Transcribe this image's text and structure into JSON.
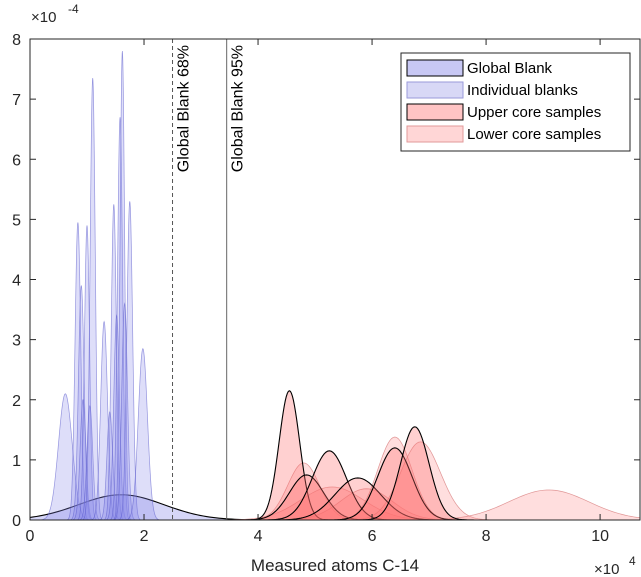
{
  "chart_data": {
    "type": "area",
    "xlabel": "Measured atoms C-14",
    "x_multiplier_label": "×10",
    "x_multiplier_exp": "4",
    "y_multiplier_label": "×10",
    "y_multiplier_exp": "-4",
    "xlim": [
      0,
      10.7
    ],
    "ylim": [
      0,
      8
    ],
    "x_ticks": [
      0,
      2,
      4,
      6,
      8,
      10
    ],
    "y_ticks": [
      0,
      1,
      2,
      3,
      4,
      5,
      6,
      7,
      8
    ],
    "legend_position": "top-right",
    "grid": false,
    "vlines": [
      {
        "label": "Global Blank 68%",
        "x": 2.5,
        "style": "dashed"
      },
      {
        "label": "Global Blank 95%",
        "x": 3.45,
        "style": "solid"
      }
    ],
    "legend": [
      {
        "label": "Global Blank",
        "fill": "#c8c8f4",
        "stroke": "#000000"
      },
      {
        "label": "Individual blanks",
        "fill": "#d8d8f6",
        "stroke": "#9a9ada"
      },
      {
        "label": "Upper core samples",
        "fill": "#ffc4c4",
        "stroke": "#000000"
      },
      {
        "label": "Lower core samples",
        "fill": "#ffd6d6",
        "stroke": "#e09a9a"
      }
    ],
    "series": [
      {
        "name": "Global Blank",
        "group": "global",
        "components": [
          {
            "mean": 1.6,
            "sd": 0.75,
            "peak": 0.42
          }
        ]
      },
      {
        "name": "Individual blanks",
        "group": "individual",
        "components": [
          {
            "mean": 0.62,
            "sd": 0.12,
            "peak": 2.1
          },
          {
            "mean": 0.84,
            "sd": 0.05,
            "peak": 4.95
          },
          {
            "mean": 0.9,
            "sd": 0.05,
            "peak": 3.9
          },
          {
            "mean": 0.93,
            "sd": 0.05,
            "peak": 2.0
          },
          {
            "mean": 1.0,
            "sd": 0.045,
            "peak": 4.9
          },
          {
            "mean": 1.05,
            "sd": 0.05,
            "peak": 1.9
          },
          {
            "mean": 1.1,
            "sd": 0.045,
            "peak": 7.35
          },
          {
            "mean": 1.3,
            "sd": 0.06,
            "peak": 3.3
          },
          {
            "mean": 1.4,
            "sd": 0.05,
            "peak": 1.8
          },
          {
            "mean": 1.47,
            "sd": 0.045,
            "peak": 5.25
          },
          {
            "mean": 1.52,
            "sd": 0.05,
            "peak": 3.4
          },
          {
            "mean": 1.58,
            "sd": 0.045,
            "peak": 6.7
          },
          {
            "mean": 1.62,
            "sd": 0.04,
            "peak": 7.8
          },
          {
            "mean": 1.66,
            "sd": 0.05,
            "peak": 3.6
          },
          {
            "mean": 1.75,
            "sd": 0.05,
            "peak": 5.3
          },
          {
            "mean": 1.98,
            "sd": 0.08,
            "peak": 2.85
          }
        ]
      },
      {
        "name": "Upper core samples",
        "group": "upper",
        "components": [
          {
            "mean": 4.55,
            "sd": 0.18,
            "peak": 2.15
          },
          {
            "mean": 4.85,
            "sd": 0.3,
            "peak": 0.75
          },
          {
            "mean": 5.25,
            "sd": 0.3,
            "peak": 1.15
          },
          {
            "mean": 5.75,
            "sd": 0.4,
            "peak": 0.7
          },
          {
            "mean": 6.4,
            "sd": 0.3,
            "peak": 1.2
          },
          {
            "mean": 6.75,
            "sd": 0.25,
            "peak": 1.55
          }
        ]
      },
      {
        "name": "Lower core samples",
        "group": "lower",
        "components": [
          {
            "mean": 4.8,
            "sd": 0.28,
            "peak": 0.95
          },
          {
            "mean": 5.3,
            "sd": 0.55,
            "peak": 0.55
          },
          {
            "mean": 5.9,
            "sd": 0.45,
            "peak": 0.52
          },
          {
            "mean": 6.4,
            "sd": 0.3,
            "peak": 1.38
          },
          {
            "mean": 6.85,
            "sd": 0.35,
            "peak": 1.3
          },
          {
            "mean": 9.1,
            "sd": 0.7,
            "peak": 0.5
          }
        ]
      }
    ]
  },
  "colors": {
    "global_fill": "#8a8ae8",
    "global_stroke": "#000000",
    "individual_fill": "#8a8ae8",
    "individual_stroke": "#5a5acc",
    "upper_fill": "#ff6e6e",
    "upper_stroke": "#000000",
    "lower_fill": "#ff8a8a",
    "lower_stroke": "#d88080"
  }
}
